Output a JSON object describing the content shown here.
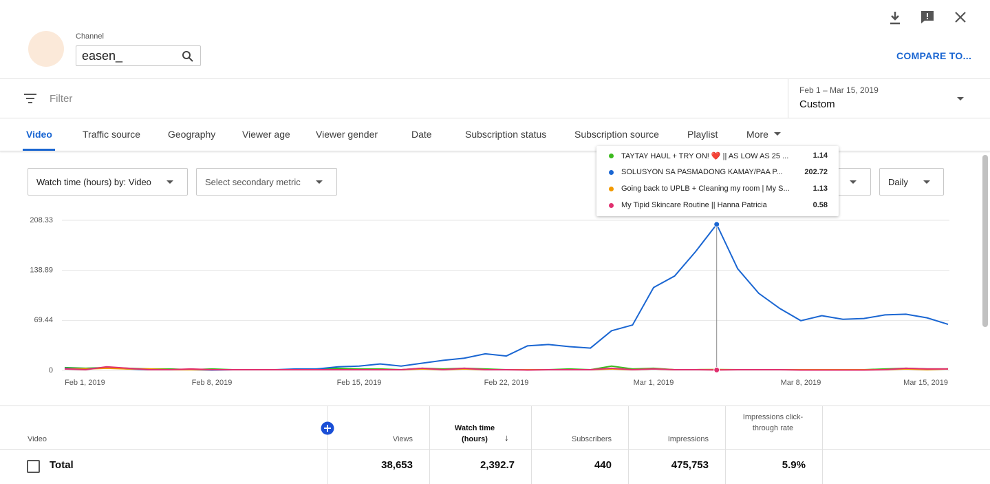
{
  "header": {
    "channel_label": "Channel",
    "channel_name": "easen_",
    "compare": "COMPARE TO..."
  },
  "filter": {
    "placeholder": "Filter",
    "date_range": "Feb 1 – Mar 15, 2019",
    "date_preset": "Custom"
  },
  "tabs": [
    "Video",
    "Traffic source",
    "Geography",
    "Viewer age",
    "Viewer gender",
    "Date",
    "Subscription status",
    "Subscription source",
    "Playlist",
    "More"
  ],
  "controls": {
    "metric": "Watch time (hours) by: Video",
    "secondary": "Select secondary metric",
    "interval": "Daily"
  },
  "chart_data": {
    "type": "line",
    "categories": [
      "Feb 1, 2019",
      null,
      null,
      null,
      null,
      null,
      null,
      "Feb 8, 2019",
      null,
      null,
      null,
      null,
      null,
      null,
      "Feb 15, 2019",
      null,
      null,
      null,
      null,
      null,
      null,
      "Feb 22, 2019",
      null,
      null,
      null,
      null,
      null,
      null,
      "Mar 1, 2019",
      null,
      null,
      null,
      null,
      null,
      null,
      "Mar 8, 2019",
      null,
      null,
      null,
      null,
      null,
      null,
      "Mar 15, 2019"
    ],
    "ylim": [
      0,
      208.33
    ],
    "yticks": [
      0,
      69.44,
      138.89,
      208.33
    ],
    "grid": true,
    "series": [
      {
        "name": "TAYTAY HAUL + TRY ON! ❤️ || AS LOW AS 25 ...",
        "color": "#3cba1e",
        "values": [
          4,
          3,
          4,
          3,
          2,
          2,
          1,
          2,
          1,
          1,
          1,
          1,
          2,
          3,
          2,
          2,
          1,
          3,
          2,
          3,
          2,
          1,
          1,
          1,
          2,
          1,
          6,
          2,
          3,
          1,
          1,
          1.14,
          1,
          1,
          1,
          1,
          1,
          1,
          1,
          2,
          3,
          2,
          2
        ]
      },
      {
        "name": "SOLUSYON SA PASMADONG KAMAY/PAA P...",
        "color": "#1a66d2",
        "values": [
          3,
          2,
          4,
          2,
          1,
          1,
          1,
          0.5,
          1,
          1,
          1,
          2,
          2,
          5,
          6,
          9,
          6,
          10,
          14,
          17,
          23,
          20,
          34,
          36,
          33,
          31,
          55,
          63,
          115,
          131,
          165,
          202.72,
          141,
          107,
          86,
          69,
          76,
          71,
          72,
          77,
          78,
          73,
          64
        ]
      },
      {
        "name": "Going back to UPLB + Cleaning my room | My S...",
        "color": "#f29900",
        "values": [
          2,
          2,
          3,
          2,
          2,
          1,
          1,
          1,
          1,
          1,
          1,
          1,
          1,
          1,
          1,
          1,
          1,
          2,
          1,
          2,
          1,
          1,
          1,
          1,
          1,
          1,
          2,
          1,
          2,
          1,
          1,
          1.13,
          1,
          1,
          1,
          1,
          1,
          1,
          1,
          1,
          2,
          1,
          2
        ]
      },
      {
        "name": "My Tipid Skincare Routine || Hanna Patricia",
        "color": "#e0306f",
        "values": [
          2,
          1,
          5,
          3,
          1,
          1,
          2,
          1,
          1,
          1,
          1,
          1,
          1,
          1,
          1,
          1,
          1,
          3,
          1,
          3,
          1,
          1,
          0.5,
          1,
          1,
          1,
          3,
          1,
          2,
          1,
          1,
          0.58,
          1,
          1,
          1,
          0.5,
          0.5,
          0.5,
          0.5,
          1,
          3,
          2,
          2
        ]
      }
    ]
  },
  "table": {
    "headers": [
      "Video",
      "Views",
      "Watch time (hours)",
      "Subscribers",
      "Impressions",
      "Impressions click-through rate"
    ],
    "total": [
      "Total",
      "38,653",
      "2,392.7",
      "440",
      "475,753",
      "5.9%"
    ]
  }
}
